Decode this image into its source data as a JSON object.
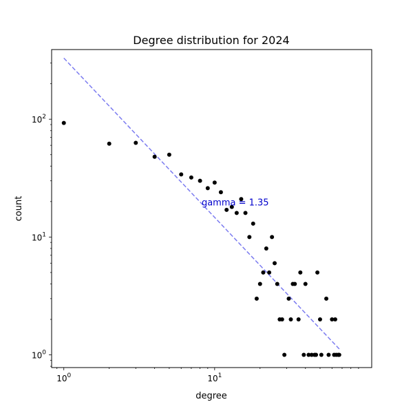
{
  "chart_data": {
    "type": "scatter",
    "title": "Degree distribution for 2024",
    "xlabel": "degree",
    "ylabel": "count",
    "xscale": "log",
    "yscale": "log",
    "xlim": [
      0.83,
      110
    ],
    "ylim": [
      0.78,
      390
    ],
    "x_ticks": [
      {
        "value": 1,
        "base": "10",
        "exp": "0"
      },
      {
        "value": 10,
        "base": "10",
        "exp": "1"
      }
    ],
    "y_ticks": [
      {
        "value": 1,
        "base": "10",
        "exp": "0"
      },
      {
        "value": 10,
        "base": "10",
        "exp": "1"
      },
      {
        "value": 100,
        "base": "10",
        "exp": "2"
      }
    ],
    "grid": false,
    "marker_color": "#000000",
    "series": [
      {
        "x": [
          1,
          2,
          3,
          4,
          5,
          6,
          7,
          8,
          9,
          10,
          11,
          12,
          13,
          14,
          15,
          16,
          17,
          18,
          19,
          20,
          21,
          22,
          23,
          24,
          25,
          26,
          27,
          28,
          29,
          31,
          32,
          33,
          34,
          36,
          37,
          39,
          40,
          42,
          44,
          46,
          47,
          48,
          50,
          51,
          55,
          57,
          60,
          62,
          63,
          64,
          66,
          67
        ],
        "y": [
          93,
          62,
          63,
          48,
          50,
          34,
          32,
          30,
          26,
          29,
          24,
          17,
          18,
          16,
          21,
          16,
          10,
          13,
          3,
          4,
          5,
          8,
          5,
          10,
          6,
          4,
          2,
          2,
          1,
          3,
          2,
          4,
          4,
          2,
          5,
          1,
          4,
          1,
          1,
          1,
          1,
          5,
          2,
          1,
          3,
          1,
          2,
          1,
          2,
          1,
          1,
          1
        ]
      }
    ],
    "fit_line": {
      "x": [
        1,
        68
      ],
      "y": [
        330,
        1.1
      ],
      "color": "#7b7bf0",
      "style": "dashed"
    },
    "annotation": {
      "text": "gamma = 1.35",
      "x": 8.2,
      "y": 18.5,
      "color": "#0000cc"
    }
  }
}
